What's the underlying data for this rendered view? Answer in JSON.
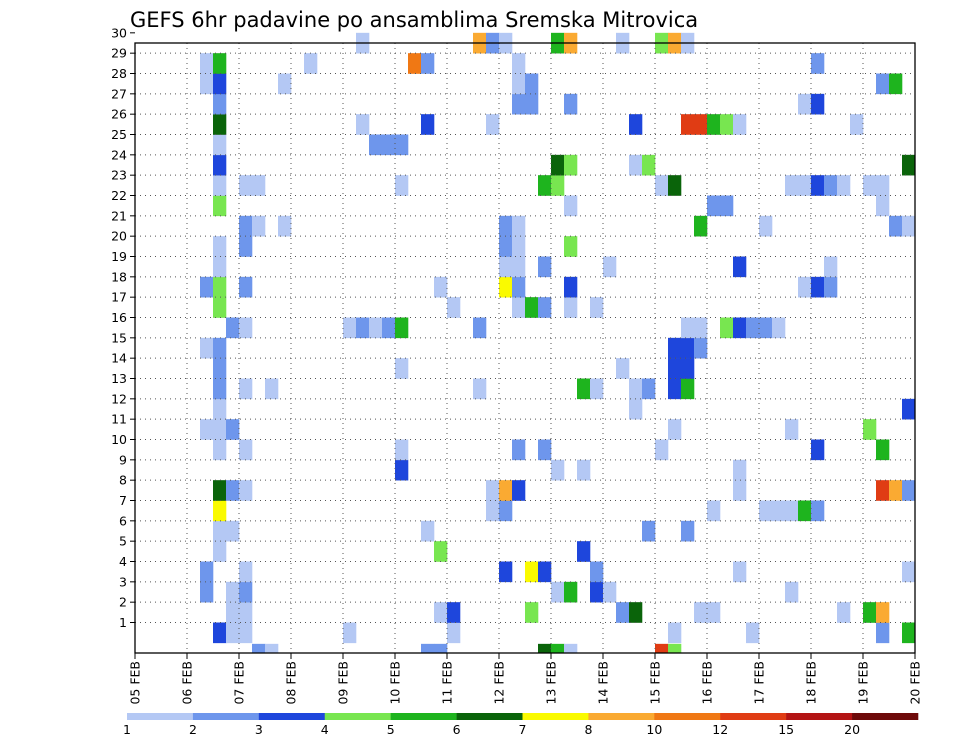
{
  "title": "GEFS 6hr padavine po ansamblima Sremska Mitrovica",
  "chart_data": {
    "type": "heatmap",
    "title": "GEFS 6hr padavine po ansamblima Sremska Mitrovica",
    "x_labels": [
      "05 FEB",
      "06 FEB",
      "07 FEB",
      "08 FEB",
      "09 FEB",
      "10 FEB",
      "11 FEB",
      "12 FEB",
      "13 FEB",
      "14 FEB",
      "15 FEB",
      "16 FEB",
      "17 FEB",
      "18 FEB",
      "19 FEB",
      "20 FEB"
    ],
    "y_labels": [
      "1",
      "2",
      "3",
      "4",
      "5",
      "6",
      "7",
      "8",
      "9",
      "10",
      "11",
      "12",
      "13",
      "14",
      "15",
      "16",
      "17",
      "18",
      "19",
      "20",
      "21",
      "22",
      "23",
      "24",
      "25",
      "26",
      "27",
      "28",
      "29",
      "30"
    ],
    "time_steps_per_day": 4,
    "total_steps": 60,
    "members": 30,
    "legend": {
      "labels": [
        "1",
        "2",
        "3",
        "4",
        "5",
        "6",
        "7",
        "8",
        "10",
        "12",
        "15",
        "20"
      ],
      "colors": [
        "#b4c8f4",
        "#6e96ec",
        "#1e46dc",
        "#78e650",
        "#1eb41e",
        "#0a640a",
        "#fafa00",
        "#faaa32",
        "#f07814",
        "#e03c14",
        "#b41414",
        "#6e0a0a"
      ]
    },
    "cells": [
      {
        "m": 1,
        "t": 6,
        "c": 3
      },
      {
        "m": 1,
        "t": 7,
        "c": 1
      },
      {
        "m": 1,
        "t": 8,
        "c": 1
      },
      {
        "m": 1,
        "t": 16,
        "c": 1
      },
      {
        "m": 1,
        "t": 24,
        "c": 1
      },
      {
        "m": 1,
        "t": 41,
        "c": 1
      },
      {
        "m": 1,
        "t": 47,
        "c": 1
      },
      {
        "m": 1,
        "t": 57,
        "c": 2
      },
      {
        "m": 1,
        "t": 59,
        "c": 5
      },
      {
        "m": 2,
        "t": 7,
        "c": 1
      },
      {
        "m": 2,
        "t": 8,
        "c": 1
      },
      {
        "m": 2,
        "t": 23,
        "c": 1
      },
      {
        "m": 2,
        "t": 24,
        "c": 3
      },
      {
        "m": 2,
        "t": 30,
        "c": 4
      },
      {
        "m": 2,
        "t": 37,
        "c": 2
      },
      {
        "m": 2,
        "t": 38,
        "c": 6
      },
      {
        "m": 2,
        "t": 43,
        "c": 1
      },
      {
        "m": 2,
        "t": 44,
        "c": 1
      },
      {
        "m": 2,
        "t": 54,
        "c": 1
      },
      {
        "m": 2,
        "t": 56,
        "c": 5
      },
      {
        "m": 2,
        "t": 57,
        "c": 8
      },
      {
        "m": 3,
        "t": 5,
        "c": 2
      },
      {
        "m": 3,
        "t": 7,
        "c": 1
      },
      {
        "m": 3,
        "t": 8,
        "c": 2
      },
      {
        "m": 3,
        "t": 32,
        "c": 1
      },
      {
        "m": 3,
        "t": 33,
        "c": 5
      },
      {
        "m": 3,
        "t": 35,
        "c": 3
      },
      {
        "m": 3,
        "t": 36,
        "c": 1
      },
      {
        "m": 3,
        "t": 50,
        "c": 1
      },
      {
        "m": 4,
        "t": 5,
        "c": 2
      },
      {
        "m": 4,
        "t": 8,
        "c": 1
      },
      {
        "m": 4,
        "t": 28,
        "c": 3
      },
      {
        "m": 4,
        "t": 30,
        "c": 7
      },
      {
        "m": 4,
        "t": 31,
        "c": 3
      },
      {
        "m": 4,
        "t": 35,
        "c": 2
      },
      {
        "m": 4,
        "t": 46,
        "c": 1
      },
      {
        "m": 4,
        "t": 59,
        "c": 1
      },
      {
        "m": 5,
        "t": 6,
        "c": 1
      },
      {
        "m": 5,
        "t": 23,
        "c": 4
      },
      {
        "m": 5,
        "t": 34,
        "c": 3
      },
      {
        "m": 6,
        "t": 6,
        "c": 1
      },
      {
        "m": 6,
        "t": 7,
        "c": 1
      },
      {
        "m": 6,
        "t": 22,
        "c": 1
      },
      {
        "m": 6,
        "t": 39,
        "c": 2
      },
      {
        "m": 6,
        "t": 42,
        "c": 2
      },
      {
        "m": 7,
        "t": 6,
        "c": 7
      },
      {
        "m": 7,
        "t": 27,
        "c": 1
      },
      {
        "m": 7,
        "t": 28,
        "c": 2
      },
      {
        "m": 7,
        "t": 44,
        "c": 1
      },
      {
        "m": 7,
        "t": 48,
        "c": 1
      },
      {
        "m": 7,
        "t": 49,
        "c": 1
      },
      {
        "m": 7,
        "t": 50,
        "c": 1
      },
      {
        "m": 7,
        "t": 51,
        "c": 5
      },
      {
        "m": 7,
        "t": 52,
        "c": 2
      },
      {
        "m": 8,
        "t": 6,
        "c": 6
      },
      {
        "m": 8,
        "t": 7,
        "c": 2
      },
      {
        "m": 8,
        "t": 8,
        "c": 1
      },
      {
        "m": 8,
        "t": 27,
        "c": 1
      },
      {
        "m": 8,
        "t": 28,
        "c": 8
      },
      {
        "m": 8,
        "t": 29,
        "c": 3
      },
      {
        "m": 8,
        "t": 46,
        "c": 1
      },
      {
        "m": 8,
        "t": 57,
        "c": 10
      },
      {
        "m": 8,
        "t": 58,
        "c": 8
      },
      {
        "m": 8,
        "t": 59,
        "c": 2
      },
      {
        "m": 9,
        "t": 20,
        "c": 3
      },
      {
        "m": 9,
        "t": 32,
        "c": 1
      },
      {
        "m": 9,
        "t": 34,
        "c": 1
      },
      {
        "m": 9,
        "t": 46,
        "c": 1
      },
      {
        "m": 10,
        "t": 6,
        "c": 1
      },
      {
        "m": 10,
        "t": 8,
        "c": 1
      },
      {
        "m": 10,
        "t": 20,
        "c": 1
      },
      {
        "m": 10,
        "t": 29,
        "c": 2
      },
      {
        "m": 10,
        "t": 31,
        "c": 2
      },
      {
        "m": 10,
        "t": 40,
        "c": 1
      },
      {
        "m": 10,
        "t": 52,
        "c": 3
      },
      {
        "m": 10,
        "t": 57,
        "c": 5
      },
      {
        "m": 11,
        "t": 5,
        "c": 1
      },
      {
        "m": 11,
        "t": 6,
        "c": 1
      },
      {
        "m": 11,
        "t": 7,
        "c": 2
      },
      {
        "m": 11,
        "t": 41,
        "c": 1
      },
      {
        "m": 11,
        "t": 50,
        "c": 1
      },
      {
        "m": 11,
        "t": 56,
        "c": 4
      },
      {
        "m": 12,
        "t": 6,
        "c": 1
      },
      {
        "m": 12,
        "t": 38,
        "c": 1
      },
      {
        "m": 12,
        "t": 59,
        "c": 3
      },
      {
        "m": 13,
        "t": 6,
        "c": 2
      },
      {
        "m": 13,
        "t": 8,
        "c": 1
      },
      {
        "m": 13,
        "t": 10,
        "c": 1
      },
      {
        "m": 13,
        "t": 26,
        "c": 1
      },
      {
        "m": 13,
        "t": 34,
        "c": 5
      },
      {
        "m": 13,
        "t": 35,
        "c": 1
      },
      {
        "m": 13,
        "t": 38,
        "c": 1
      },
      {
        "m": 13,
        "t": 39,
        "c": 2
      },
      {
        "m": 13,
        "t": 41,
        "c": 3
      },
      {
        "m": 13,
        "t": 42,
        "c": 5
      },
      {
        "m": 14,
        "t": 6,
        "c": 2
      },
      {
        "m": 14,
        "t": 20,
        "c": 1
      },
      {
        "m": 14,
        "t": 37,
        "c": 1
      },
      {
        "m": 14,
        "t": 41,
        "c": 3
      },
      {
        "m": 14,
        "t": 42,
        "c": 3
      },
      {
        "m": 15,
        "t": 5,
        "c": 1
      },
      {
        "m": 15,
        "t": 6,
        "c": 2
      },
      {
        "m": 15,
        "t": 41,
        "c": 3
      },
      {
        "m": 15,
        "t": 42,
        "c": 3
      },
      {
        "m": 15,
        "t": 43,
        "c": 2
      },
      {
        "m": 16,
        "t": 7,
        "c": 2
      },
      {
        "m": 16,
        "t": 8,
        "c": 1
      },
      {
        "m": 16,
        "t": 16,
        "c": 1
      },
      {
        "m": 16,
        "t": 17,
        "c": 2
      },
      {
        "m": 16,
        "t": 18,
        "c": 1
      },
      {
        "m": 16,
        "t": 19,
        "c": 2
      },
      {
        "m": 16,
        "t": 20,
        "c": 5
      },
      {
        "m": 16,
        "t": 26,
        "c": 2
      },
      {
        "m": 16,
        "t": 42,
        "c": 1
      },
      {
        "m": 16,
        "t": 43,
        "c": 1
      },
      {
        "m": 16,
        "t": 45,
        "c": 4
      },
      {
        "m": 16,
        "t": 46,
        "c": 3
      },
      {
        "m": 16,
        "t": 47,
        "c": 2
      },
      {
        "m": 16,
        "t": 48,
        "c": 2
      },
      {
        "m": 16,
        "t": 49,
        "c": 1
      },
      {
        "m": 17,
        "t": 6,
        "c": 4
      },
      {
        "m": 17,
        "t": 24,
        "c": 1
      },
      {
        "m": 17,
        "t": 29,
        "c": 1
      },
      {
        "m": 17,
        "t": 30,
        "c": 5
      },
      {
        "m": 17,
        "t": 31,
        "c": 2
      },
      {
        "m": 17,
        "t": 33,
        "c": 1
      },
      {
        "m": 17,
        "t": 35,
        "c": 1
      },
      {
        "m": 18,
        "t": 5,
        "c": 2
      },
      {
        "m": 18,
        "t": 6,
        "c": 4
      },
      {
        "m": 18,
        "t": 8,
        "c": 2
      },
      {
        "m": 18,
        "t": 23,
        "c": 1
      },
      {
        "m": 18,
        "t": 28,
        "c": 7
      },
      {
        "m": 18,
        "t": 29,
        "c": 2
      },
      {
        "m": 18,
        "t": 33,
        "c": 3
      },
      {
        "m": 18,
        "t": 51,
        "c": 1
      },
      {
        "m": 18,
        "t": 52,
        "c": 3
      },
      {
        "m": 18,
        "t": 53,
        "c": 2
      },
      {
        "m": 19,
        "t": 6,
        "c": 1
      },
      {
        "m": 19,
        "t": 28,
        "c": 1
      },
      {
        "m": 19,
        "t": 29,
        "c": 1
      },
      {
        "m": 19,
        "t": 31,
        "c": 2
      },
      {
        "m": 19,
        "t": 36,
        "c": 1
      },
      {
        "m": 19,
        "t": 46,
        "c": 3
      },
      {
        "m": 19,
        "t": 53,
        "c": 1
      },
      {
        "m": 20,
        "t": 6,
        "c": 1
      },
      {
        "m": 20,
        "t": 8,
        "c": 2
      },
      {
        "m": 20,
        "t": 28,
        "c": 2
      },
      {
        "m": 20,
        "t": 29,
        "c": 1
      },
      {
        "m": 20,
        "t": 33,
        "c": 4
      },
      {
        "m": 21,
        "t": 8,
        "c": 2
      },
      {
        "m": 21,
        "t": 9,
        "c": 1
      },
      {
        "m": 21,
        "t": 11,
        "c": 1
      },
      {
        "m": 21,
        "t": 28,
        "c": 2
      },
      {
        "m": 21,
        "t": 29,
        "c": 1
      },
      {
        "m": 21,
        "t": 43,
        "c": 5
      },
      {
        "m": 21,
        "t": 48,
        "c": 1
      },
      {
        "m": 21,
        "t": 58,
        "c": 2
      },
      {
        "m": 21,
        "t": 59,
        "c": 1
      },
      {
        "m": 22,
        "t": 6,
        "c": 4
      },
      {
        "m": 22,
        "t": 33,
        "c": 1
      },
      {
        "m": 22,
        "t": 44,
        "c": 2
      },
      {
        "m": 22,
        "t": 45,
        "c": 2
      },
      {
        "m": 22,
        "t": 57,
        "c": 1
      },
      {
        "m": 23,
        "t": 6,
        "c": 1
      },
      {
        "m": 23,
        "t": 8,
        "c": 1
      },
      {
        "m": 23,
        "t": 9,
        "c": 1
      },
      {
        "m": 23,
        "t": 20,
        "c": 1
      },
      {
        "m": 23,
        "t": 31,
        "c": 5
      },
      {
        "m": 23,
        "t": 32,
        "c": 4
      },
      {
        "m": 23,
        "t": 40,
        "c": 1
      },
      {
        "m": 23,
        "t": 41,
        "c": 6
      },
      {
        "m": 23,
        "t": 50,
        "c": 1
      },
      {
        "m": 23,
        "t": 51,
        "c": 1
      },
      {
        "m": 23,
        "t": 52,
        "c": 3
      },
      {
        "m": 23,
        "t": 53,
        "c": 2
      },
      {
        "m": 23,
        "t": 54,
        "c": 1
      },
      {
        "m": 23,
        "t": 56,
        "c": 1
      },
      {
        "m": 23,
        "t": 57,
        "c": 1
      },
      {
        "m": 24,
        "t": 6,
        "c": 3
      },
      {
        "m": 24,
        "t": 32,
        "c": 6
      },
      {
        "m": 24,
        "t": 33,
        "c": 4
      },
      {
        "m": 24,
        "t": 38,
        "c": 1
      },
      {
        "m": 24,
        "t": 39,
        "c": 4
      },
      {
        "m": 24,
        "t": 59,
        "c": 6
      },
      {
        "m": 25,
        "t": 6,
        "c": 1
      },
      {
        "m": 25,
        "t": 18,
        "c": 2
      },
      {
        "m": 25,
        "t": 19,
        "c": 2
      },
      {
        "m": 25,
        "t": 20,
        "c": 2
      },
      {
        "m": 26,
        "t": 6,
        "c": 6
      },
      {
        "m": 26,
        "t": 17,
        "c": 1
      },
      {
        "m": 26,
        "t": 22,
        "c": 3
      },
      {
        "m": 26,
        "t": 27,
        "c": 1
      },
      {
        "m": 26,
        "t": 38,
        "c": 3
      },
      {
        "m": 26,
        "t": 42,
        "c": 10
      },
      {
        "m": 26,
        "t": 43,
        "c": 10
      },
      {
        "m": 26,
        "t": 44,
        "c": 5
      },
      {
        "m": 26,
        "t": 45,
        "c": 4
      },
      {
        "m": 26,
        "t": 46,
        "c": 1
      },
      {
        "m": 26,
        "t": 55,
        "c": 1
      },
      {
        "m": 27,
        "t": 6,
        "c": 2
      },
      {
        "m": 27,
        "t": 29,
        "c": 2
      },
      {
        "m": 27,
        "t": 30,
        "c": 2
      },
      {
        "m": 27,
        "t": 33,
        "c": 2
      },
      {
        "m": 27,
        "t": 51,
        "c": 1
      },
      {
        "m": 27,
        "t": 52,
        "c": 3
      },
      {
        "m": 28,
        "t": 5,
        "c": 1
      },
      {
        "m": 28,
        "t": 6,
        "c": 3
      },
      {
        "m": 28,
        "t": 11,
        "c": 1
      },
      {
        "m": 28,
        "t": 29,
        "c": 1
      },
      {
        "m": 28,
        "t": 30,
        "c": 2
      },
      {
        "m": 28,
        "t": 57,
        "c": 2
      },
      {
        "m": 28,
        "t": 58,
        "c": 5
      },
      {
        "m": 29,
        "t": 5,
        "c": 1
      },
      {
        "m": 29,
        "t": 6,
        "c": 5
      },
      {
        "m": 29,
        "t": 13,
        "c": 1
      },
      {
        "m": 29,
        "t": 21,
        "c": 9
      },
      {
        "m": 29,
        "t": 22,
        "c": 2
      },
      {
        "m": 29,
        "t": 29,
        "c": 1
      },
      {
        "m": 29,
        "t": 52,
        "c": 2
      },
      {
        "m": 30,
        "t": 17,
        "c": 1
      },
      {
        "m": 30,
        "t": 26,
        "c": 8
      },
      {
        "m": 30,
        "t": 27,
        "c": 2
      },
      {
        "m": 30,
        "t": 28,
        "c": 1
      },
      {
        "m": 30,
        "t": 32,
        "c": 5
      },
      {
        "m": 30,
        "t": 33,
        "c": 8
      },
      {
        "m": 30,
        "t": 37,
        "c": 1
      },
      {
        "m": 30,
        "t": 40,
        "c": 4
      },
      {
        "m": 30,
        "t": 41,
        "c": 8
      },
      {
        "m": 30,
        "t": 42,
        "c": 1
      },
      {
        "m": 0,
        "t": 9,
        "c": 2
      },
      {
        "m": 0,
        "t": 10,
        "c": 1
      },
      {
        "m": 0,
        "t": 22,
        "c": 2
      },
      {
        "m": 0,
        "t": 23,
        "c": 2
      },
      {
        "m": 0,
        "t": 31,
        "c": 6
      },
      {
        "m": 0,
        "t": 32,
        "c": 5
      },
      {
        "m": 0,
        "t": 33,
        "c": 1
      },
      {
        "m": 0,
        "t": 40,
        "c": 10
      },
      {
        "m": 0,
        "t": 41,
        "c": 4
      }
    ]
  }
}
